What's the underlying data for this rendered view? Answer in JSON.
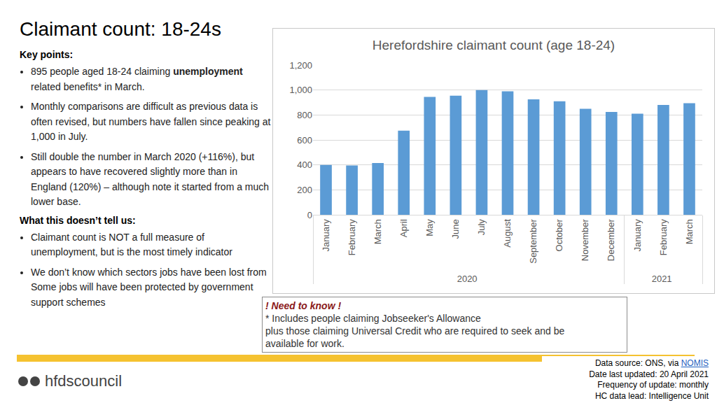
{
  "heading": "Claimant count: 18-24s",
  "key_points": {
    "label": "Key points:",
    "bullets": [
      [
        {
          "text": "895 people aged 18-24 claiming "
        },
        {
          "text": "unemployment",
          "bold": true
        },
        {
          "text": " related benefits* in March."
        }
      ],
      [
        {
          "text": "Monthly comparisons are difficult as previous data is often revised, but numbers have fallen since peaking at 1,000 in July."
        }
      ],
      [
        {
          "text": "Still double the number in March 2020 (+116%), but appears to have recovered slightly more than in England (120%) – although note it started from a much lower base."
        }
      ]
    ]
  },
  "limitations": {
    "label": "What this doesn’t tell us:",
    "bullets": [
      [
        {
          "text": "Claimant count is NOT a full measure of unemployment, but is the most timely indicator"
        }
      ],
      [
        {
          "text": "We don’t know which sectors jobs have been lost from Some jobs will have been protected by government support schemes"
        }
      ]
    ]
  },
  "notes": {
    "head": "! Need to know !",
    "lines": [
      "* Includes people claiming Jobseeker's Allowance",
      "plus those claiming Universal Credit who are required to seek and be",
      "available for work."
    ]
  },
  "logo": "hfdscouncil",
  "footer": [
    [
      {
        "text": "Data source: ONS, via "
      },
      {
        "text": "NOMIS",
        "link": true
      }
    ],
    [
      {
        "text": "Date last updated: 20 April 2021"
      }
    ],
    [
      {
        "text": "Frequency of update: monthly"
      }
    ],
    [
      {
        "text": "HC data lead: Intelligence Unit"
      }
    ]
  ],
  "chart_data": {
    "type": "bar",
    "title": "Herefordshire claimant count (age 18-24)",
    "categories": [
      "January",
      "February",
      "March",
      "April",
      "May",
      "June",
      "July",
      "August",
      "September",
      "October",
      "November",
      "December",
      "January",
      "February",
      "March"
    ],
    "years": [
      "2020",
      "2020",
      "2020",
      "2020",
      "2020",
      "2020",
      "2020",
      "2020",
      "2020",
      "2020",
      "2020",
      "2020",
      "2021",
      "2021",
      "2021"
    ],
    "values": [
      400,
      395,
      415,
      675,
      945,
      955,
      1000,
      990,
      925,
      910,
      850,
      825,
      810,
      880,
      895
    ],
    "color": "#5b9bd5",
    "ylim": [
      0,
      1200
    ],
    "yticks": [
      0,
      200,
      400,
      600,
      800,
      {
        "value": 1000,
        "label": "1,000"
      },
      {
        "value": 1200,
        "label": "1,200"
      }
    ],
    "grid": true
  }
}
